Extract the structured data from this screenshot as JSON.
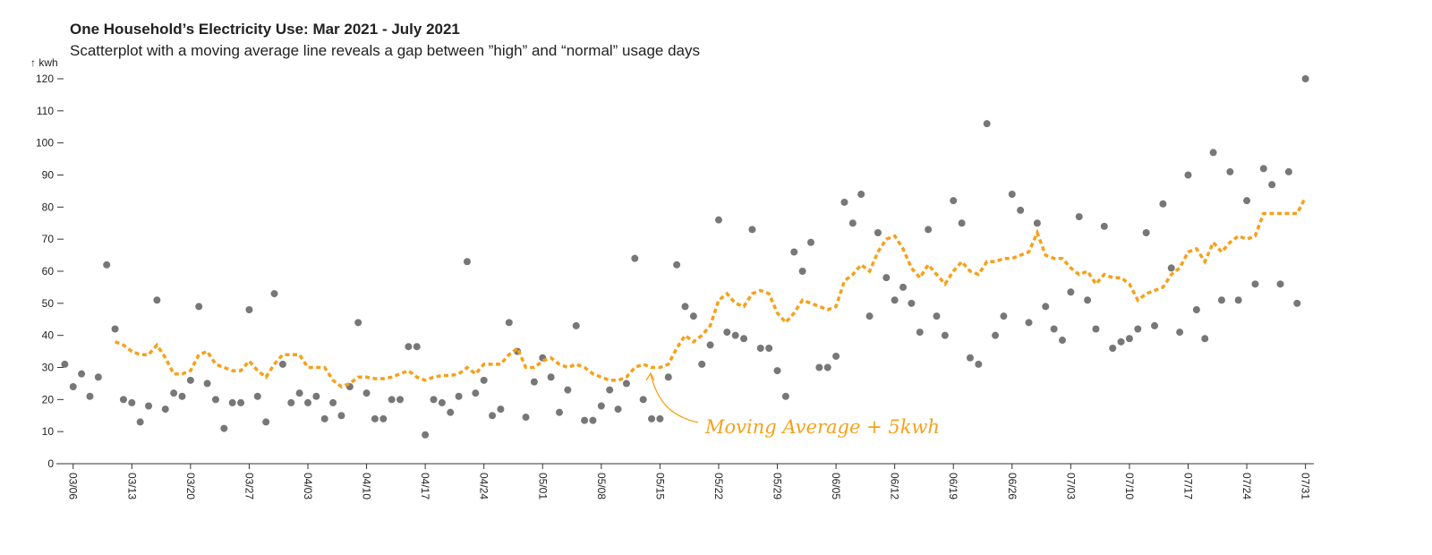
{
  "chart_data": {
    "type": "scatter",
    "title": "One Household’s Electricity Use: Mar 2021 - July 2021",
    "subtitle": "Scatterplot with a moving average line reveals a gap between ”high” and “normal” usage days",
    "ylabel": "↑ kwh",
    "x": [
      "03/05",
      "03/06",
      "03/07",
      "03/08",
      "03/09",
      "03/10",
      "03/11",
      "03/12",
      "03/13",
      "03/14",
      "03/15",
      "03/16",
      "03/17",
      "03/18",
      "03/19",
      "03/20",
      "03/21",
      "03/22",
      "03/23",
      "03/24",
      "03/25",
      "03/26",
      "03/27",
      "03/28",
      "03/29",
      "03/30",
      "03/31",
      "04/01",
      "04/02",
      "04/03",
      "04/04",
      "04/05",
      "04/06",
      "04/07",
      "04/08",
      "04/09",
      "04/10",
      "04/11",
      "04/12",
      "04/13",
      "04/14",
      "04/15",
      "04/16",
      "04/17",
      "04/18",
      "04/19",
      "04/20",
      "04/21",
      "04/22",
      "04/23",
      "04/24",
      "04/25",
      "04/26",
      "04/27",
      "04/28",
      "04/29",
      "04/30",
      "05/01",
      "05/02",
      "05/03",
      "05/04",
      "05/05",
      "05/06",
      "05/07",
      "05/08",
      "05/09",
      "05/10",
      "05/11",
      "05/12",
      "05/13",
      "05/14",
      "05/15",
      "05/16",
      "05/17",
      "05/18",
      "05/19",
      "05/20",
      "05/21",
      "05/22",
      "05/23",
      "05/24",
      "05/25",
      "05/26",
      "05/27",
      "05/28",
      "05/29",
      "05/30",
      "05/31",
      "06/01",
      "06/02",
      "06/03",
      "06/04",
      "06/05",
      "06/06",
      "06/07",
      "06/08",
      "06/09",
      "06/10",
      "06/11",
      "06/12",
      "06/13",
      "06/14",
      "06/15",
      "06/16",
      "06/17",
      "06/18",
      "06/19",
      "06/20",
      "06/21",
      "06/22",
      "06/23",
      "06/24",
      "06/25",
      "06/26",
      "06/27",
      "06/28",
      "06/29",
      "06/30",
      "07/01",
      "07/02",
      "07/03",
      "07/04",
      "07/05",
      "07/06",
      "07/07",
      "07/08",
      "07/09",
      "07/10",
      "07/11",
      "07/12",
      "07/13",
      "07/14",
      "07/15",
      "07/16",
      "07/17",
      "07/18",
      "07/19",
      "07/20",
      "07/21",
      "07/22",
      "07/23",
      "07/24",
      "07/25",
      "07/26",
      "07/27",
      "07/28",
      "07/29",
      "07/30",
      "07/31"
    ],
    "series": [
      {
        "color": "#777777",
        "values": [
          31,
          24,
          28,
          21,
          27,
          62,
          42,
          20,
          19,
          13,
          18,
          51,
          17,
          22,
          21,
          26,
          49,
          25,
          20,
          11,
          19,
          19,
          48,
          21,
          13,
          53,
          31,
          19,
          22,
          19,
          21,
          14,
          19,
          15,
          24,
          44,
          22,
          14,
          14,
          20,
          20,
          36.5,
          36.5,
          9,
          20,
          19,
          16,
          21,
          63,
          22,
          26,
          15,
          17,
          44,
          35,
          14.5,
          25.5,
          33,
          27,
          16,
          23,
          43,
          13.5,
          13.5,
          18,
          23,
          17,
          25,
          64,
          20,
          14,
          14,
          27,
          62,
          49,
          46,
          31,
          37,
          76,
          41,
          40,
          39,
          73,
          36,
          36,
          29,
          21,
          66,
          60,
          69,
          30,
          30,
          33.5,
          81.5,
          75,
          84,
          46,
          72,
          58,
          51,
          55,
          50,
          41,
          73,
          46,
          40,
          82,
          75,
          33,
          31,
          106,
          40,
          46,
          84,
          79,
          44,
          75,
          49,
          42,
          38.5,
          53.5,
          77,
          51,
          42,
          74,
          36,
          38,
          39,
          42,
          72,
          43,
          81,
          61,
          41,
          90,
          48,
          39,
          97,
          51,
          91,
          51,
          82,
          56,
          92,
          87,
          56,
          91,
          50,
          120
        ]
      },
      {
        "name": "Moving Average + 5kwh",
        "color": "#f5a11c",
        "values": [
          null,
          null,
          null,
          null,
          null,
          null,
          38,
          37,
          35,
          34,
          34,
          37,
          33,
          28,
          28,
          29,
          34,
          35,
          31,
          30,
          29,
          29,
          32,
          29,
          27,
          31,
          34,
          34,
          34,
          30,
          30,
          30,
          26,
          24,
          25,
          27,
          27,
          26.5,
          26.5,
          27,
          28,
          29,
          27,
          26,
          27,
          27.5,
          27.5,
          28,
          30,
          28,
          31,
          31,
          31,
          34,
          36,
          30,
          30,
          32,
          33,
          31,
          30,
          31,
          30,
          28,
          27,
          26,
          26,
          27,
          30,
          31,
          30,
          30,
          31,
          36,
          40,
          38,
          40,
          43,
          51,
          53,
          50,
          49,
          53,
          54,
          53,
          47,
          44,
          47,
          51,
          50,
          49,
          48,
          49,
          57,
          59,
          62,
          60,
          66,
          70,
          71,
          67,
          61,
          58,
          62,
          59,
          56,
          60,
          63,
          60,
          59,
          63,
          63,
          64,
          64,
          65,
          66,
          72,
          65,
          64,
          64,
          61,
          59,
          60,
          56,
          59,
          58,
          58,
          56,
          51,
          53,
          54,
          55,
          59,
          61,
          66,
          67,
          63,
          69,
          66,
          69,
          71,
          70,
          71,
          78,
          78,
          78,
          78,
          78,
          83
        ]
      }
    ],
    "xlim": [
      "03/04",
      "08/01"
    ],
    "xticks": [
      "03/06",
      "03/13",
      "03/20",
      "03/27",
      "04/03",
      "04/10",
      "04/17",
      "04/24",
      "05/01",
      "05/08",
      "05/15",
      "05/22",
      "05/29",
      "06/05",
      "06/12",
      "06/19",
      "06/26",
      "07/03",
      "07/10",
      "07/17",
      "07/24",
      "07/31"
    ],
    "ylim": [
      0,
      120
    ],
    "yticks": [
      0,
      10,
      20,
      30,
      40,
      50,
      60,
      70,
      80,
      90,
      100,
      110,
      120
    ]
  }
}
